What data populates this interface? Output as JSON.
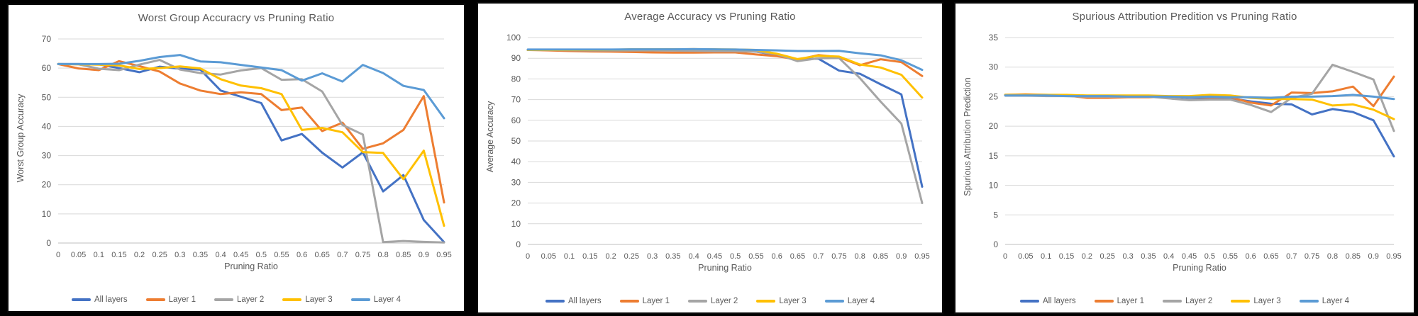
{
  "page": {
    "background": "#000000",
    "panel_bg": "#ffffff",
    "text_color": "#595959",
    "grid_color": "#D9D9D9",
    "axis_line_color": "#BFBFBF"
  },
  "chart_data": [
    {
      "type": "line",
      "title": "Worst Group Accuracry vs Pruning Ratio",
      "xlabel": "Pruning Ratio",
      "ylabel": "Worst Group Accuracy",
      "ylim": [
        0,
        70
      ],
      "ytick_step": 10,
      "grid": "horizontal",
      "legend_position": "bottom",
      "categories": [
        "0",
        "0.05",
        "0.1",
        "0.15",
        "0.2",
        "0.25",
        "0.3",
        "0.35",
        "0.4",
        "0.45",
        "0.5",
        "0.55",
        "0.6",
        "0.65",
        "0.7",
        "0.75",
        "0.8",
        "0.85",
        "0.9",
        "0.95"
      ],
      "series": [
        {
          "name": "All layers",
          "color": "#4472C4",
          "values": [
            61.4,
            61.4,
            61.3,
            60.0,
            58.6,
            60.5,
            59.8,
            59.5,
            52.3,
            50.2,
            48.0,
            35.2,
            37.4,
            31.0,
            25.9,
            31.1,
            17.7,
            23.3,
            7.9,
            0.3
          ]
        },
        {
          "name": "Layer 1",
          "color": "#ED7D31",
          "values": [
            61.4,
            59.9,
            59.3,
            62.4,
            60.7,
            58.8,
            54.7,
            52.3,
            51.1,
            51.7,
            51.1,
            45.6,
            46.5,
            38.4,
            41.3,
            32.3,
            34.2,
            38.8,
            50.4,
            13.9
          ]
        },
        {
          "name": "Layer 2",
          "color": "#A5A5A5",
          "values": [
            61.4,
            61.3,
            59.8,
            59.3,
            61.2,
            62.8,
            59.5,
            58.3,
            57.8,
            59.2,
            60.0,
            56.0,
            56.2,
            52.0,
            40.5,
            37.2,
            0.3,
            0.7,
            0.4,
            0.2
          ]
        },
        {
          "name": "Layer 3",
          "color": "#FFC000",
          "values": [
            61.4,
            61.3,
            61.2,
            60.9,
            59.7,
            60.0,
            60.6,
            59.9,
            56.2,
            54.0,
            53.1,
            51.1,
            38.8,
            39.5,
            38.0,
            31.2,
            30.9,
            21.9,
            31.7,
            5.9
          ]
        },
        {
          "name": "Layer 4",
          "color": "#5B9BD5",
          "values": [
            61.4,
            61.4,
            61.4,
            61.5,
            62.5,
            63.8,
            64.5,
            62.3,
            62.0,
            61.1,
            60.2,
            59.3,
            55.7,
            58.2,
            55.4,
            61.1,
            58.3,
            53.9,
            52.5,
            42.8
          ]
        }
      ]
    },
    {
      "type": "line",
      "title": "Average Accuracy vs Pruning Ratio",
      "xlabel": "Pruning Ratio",
      "ylabel": "Average Accuracy",
      "ylim": [
        0,
        100
      ],
      "ytick_step": 10,
      "grid": "horizontal",
      "legend_position": "bottom",
      "categories": [
        "0",
        "0.05",
        "0.1",
        "0.15",
        "0.2",
        "0.25",
        "0.3",
        "0.35",
        "0.4",
        "0.45",
        "0.5",
        "0.55",
        "0.6",
        "0.65",
        "0.7",
        "0.75",
        "0.8",
        "0.85",
        "0.9",
        "0.95"
      ],
      "series": [
        {
          "name": "All layers",
          "color": "#4472C4",
          "values": [
            94.0,
            94.0,
            94.0,
            94.0,
            94.1,
            94.2,
            94.2,
            94.3,
            94.4,
            94.2,
            94.0,
            93.2,
            91.5,
            89.4,
            89.8,
            84.0,
            82.5,
            77.4,
            72.5,
            27.9
          ]
        },
        {
          "name": "Layer 1",
          "color": "#ED7D31",
          "values": [
            94.0,
            93.8,
            93.5,
            93.3,
            93.2,
            93.0,
            92.8,
            92.7,
            92.7,
            92.8,
            92.8,
            91.8,
            91.0,
            89.3,
            91.5,
            90.5,
            86.6,
            89.5,
            88.1,
            81.4
          ]
        },
        {
          "name": "Layer 2",
          "color": "#A5A5A5",
          "values": [
            94.0,
            94.0,
            93.9,
            93.8,
            93.8,
            93.8,
            93.8,
            93.7,
            93.6,
            93.4,
            93.4,
            93.2,
            92.0,
            88.6,
            90.0,
            90.1,
            80.4,
            69.0,
            58.4,
            20.0
          ]
        },
        {
          "name": "Layer 3",
          "color": "#FFC000",
          "values": [
            94.0,
            94.0,
            94.0,
            94.0,
            94.1,
            94.3,
            94.3,
            94.3,
            94.4,
            94.3,
            94.2,
            94.0,
            92.2,
            89.6,
            91.2,
            90.8,
            87.0,
            85.5,
            82.0,
            71.0
          ]
        },
        {
          "name": "Layer 4",
          "color": "#5B9BD5",
          "values": [
            94.2,
            94.2,
            94.2,
            94.2,
            94.2,
            94.3,
            94.3,
            94.3,
            94.4,
            94.3,
            94.2,
            94.0,
            93.8,
            93.5,
            93.5,
            93.6,
            92.4,
            91.4,
            89.0,
            84.4
          ]
        }
      ]
    },
    {
      "type": "line",
      "title": "Spurious Attribution Predition vs Pruning Ratio",
      "xlabel": "Pruning Ratio",
      "ylabel": "Spurious Attribution Prediction",
      "ylim": [
        0,
        35
      ],
      "ytick_step": 5,
      "grid": "horizontal",
      "legend_position": "bottom",
      "categories": [
        "0",
        "0.05",
        "0.1",
        "0.15",
        "0.2",
        "0.25",
        "0.3",
        "0.35",
        "0.4",
        "0.45",
        "0.5",
        "0.55",
        "0.6",
        "0.65",
        "0.7",
        "0.75",
        "0.8",
        "0.85",
        "0.9",
        "0.95"
      ],
      "series": [
        {
          "name": "All layers",
          "color": "#4472C4",
          "values": [
            25.3,
            25.3,
            25.2,
            25.2,
            25.1,
            25.1,
            25.1,
            25.0,
            25.0,
            24.8,
            24.8,
            24.7,
            24.2,
            23.8,
            23.7,
            22.0,
            22.9,
            22.4,
            21.0,
            14.9
          ]
        },
        {
          "name": "Layer 1",
          "color": "#ED7D31",
          "values": [
            25.3,
            25.4,
            25.3,
            25.2,
            24.8,
            24.8,
            24.9,
            24.9,
            25.0,
            24.9,
            24.9,
            24.9,
            24.0,
            23.5,
            25.7,
            25.6,
            25.9,
            26.7,
            23.4,
            28.4
          ]
        },
        {
          "name": "Layer 2",
          "color": "#A5A5A5",
          "values": [
            25.2,
            25.2,
            25.1,
            25.1,
            25.0,
            25.0,
            25.0,
            25.0,
            24.7,
            24.4,
            24.5,
            24.5,
            23.6,
            22.4,
            24.8,
            25.5,
            30.4,
            29.2,
            27.9,
            19.2
          ]
        },
        {
          "name": "Layer 3",
          "color": "#FFC000",
          "values": [
            25.3,
            25.3,
            25.3,
            25.3,
            25.2,
            25.2,
            25.2,
            25.2,
            25.1,
            25.1,
            25.3,
            25.2,
            24.8,
            24.6,
            24.6,
            24.5,
            23.5,
            23.7,
            22.8,
            21.2
          ]
        },
        {
          "name": "Layer 4",
          "color": "#5B9BD5",
          "values": [
            25.2,
            25.2,
            25.2,
            25.1,
            25.1,
            25.1,
            25.0,
            25.0,
            25.0,
            24.9,
            25.0,
            24.9,
            24.9,
            24.8,
            25.0,
            25.0,
            25.1,
            25.3,
            25.0,
            24.6
          ]
        }
      ]
    }
  ]
}
